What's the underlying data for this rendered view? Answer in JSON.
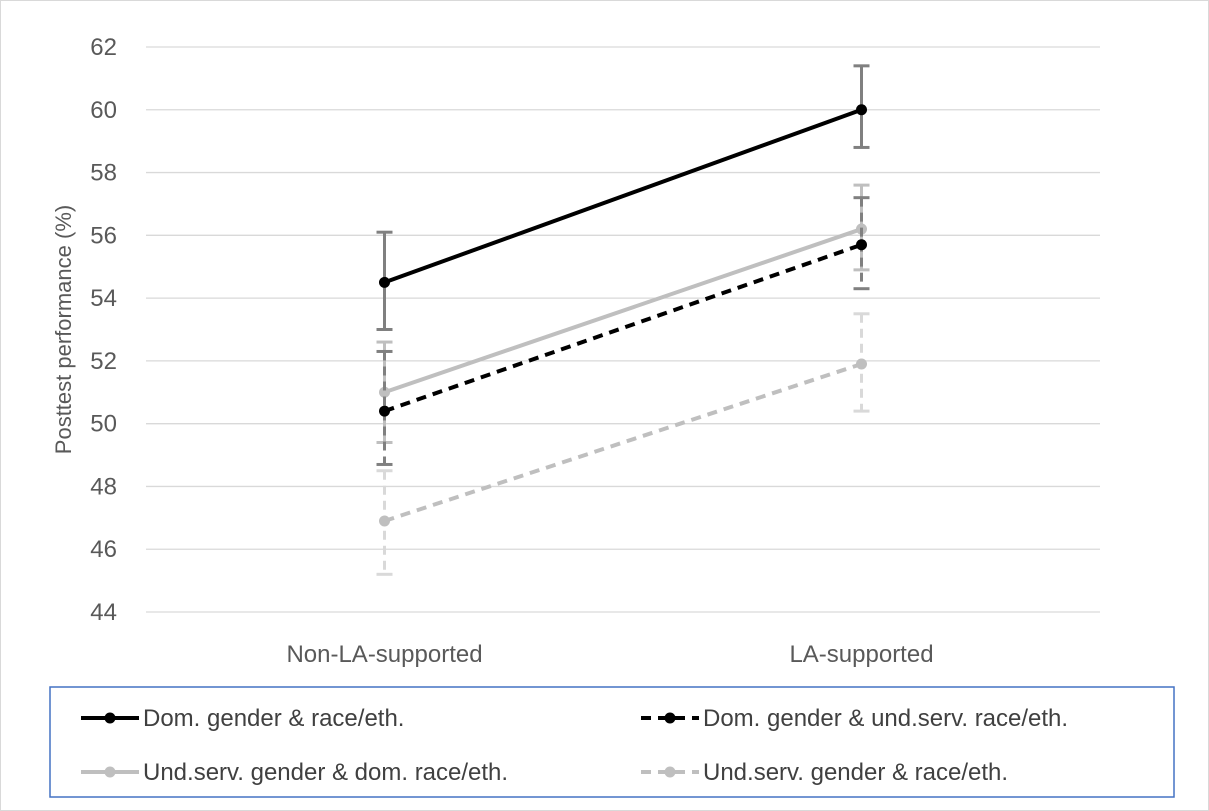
{
  "chart_data": {
    "type": "line",
    "title": "",
    "xlabel": "",
    "ylabel": "Posttest performance (%)",
    "categories": [
      "Non-LA-supported",
      "LA-supported"
    ],
    "ylim": [
      44,
      62
    ],
    "yticks": [
      44,
      46,
      48,
      50,
      52,
      54,
      56,
      58,
      60,
      62
    ],
    "grid": true,
    "legend_position": "bottom",
    "series": [
      {
        "name": "Dom. gender & race/eth.",
        "values": [
          54.5,
          60.0
        ],
        "err_low": [
          53.0,
          58.8
        ],
        "err_high": [
          56.1,
          61.4
        ],
        "color": "#000000",
        "dashed": false,
        "err_color": "#808080"
      },
      {
        "name": "Dom. gender & und.serv. race/eth.",
        "values": [
          50.4,
          55.7
        ],
        "err_low": [
          48.7,
          54.3
        ],
        "err_high": [
          52.3,
          57.2
        ],
        "color": "#000000",
        "dashed": true,
        "err_color": "#808080"
      },
      {
        "name": "Und.serv. gender & dom. race/eth.",
        "values": [
          51.0,
          56.2
        ],
        "err_low": [
          49.4,
          54.9
        ],
        "err_high": [
          52.6,
          57.6
        ],
        "color": "#bfbfbf",
        "dashed": false,
        "err_color": "#bfbfbf"
      },
      {
        "name": "Und.serv. gender & race/eth.",
        "values": [
          46.9,
          51.9
        ],
        "err_low": [
          45.2,
          50.4
        ],
        "err_high": [
          48.5,
          53.5
        ],
        "color": "#bfbfbf",
        "dashed": true,
        "err_color": "#d9d9d9"
      }
    ]
  },
  "legend_border_color": "#4472c4",
  "grid_color": "#d9d9d9",
  "tick_color": "#595959"
}
